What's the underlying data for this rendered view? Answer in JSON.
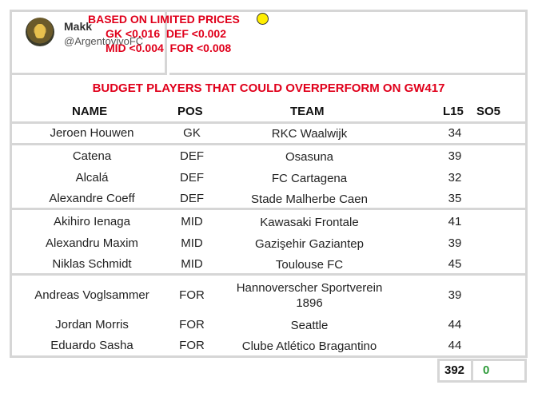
{
  "profile": {
    "name": "Makk",
    "handle": "@ArgentovivoFC"
  },
  "limits": {
    "title": "BASED ON LIMITED PRICES",
    "line1": "GK <0.016  DEF <0.002",
    "line2": "MID <0.004  FOR <0.008",
    "dot_color": "#ffee00"
  },
  "table": {
    "title": "BUDGET PLAYERS THAT COULD OVERPERFORM ON GW417",
    "headers": {
      "name": "NAME",
      "pos": "POS",
      "team": "TEAM",
      "l15": "L15",
      "so5": "SO5"
    },
    "rows": [
      {
        "name": "Jeroen Houwen",
        "pos": "GK",
        "team": "RKC Waalwijk",
        "l15": "34"
      },
      {
        "name": "Catena",
        "pos": "DEF",
        "team": "Osasuna",
        "l15": "39"
      },
      {
        "name": "Alcalá",
        "pos": "DEF",
        "team": "FC Cartagena",
        "l15": "32"
      },
      {
        "name": "Alexandre Coeff",
        "pos": "DEF",
        "team": "Stade Malherbe Caen",
        "l15": "35"
      },
      {
        "name": "Akihiro Ienaga",
        "pos": "MID",
        "team": "Kawasaki Frontale",
        "l15": "41"
      },
      {
        "name": "Alexandru Maxim",
        "pos": "MID",
        "team": "Gazişehir Gaziantep",
        "l15": "39"
      },
      {
        "name": "Niklas Schmidt",
        "pos": "MID",
        "team": "Toulouse FC",
        "l15": "45"
      },
      {
        "name": "Andreas Voglsammer",
        "pos": "FOR",
        "team": "Hannoverscher Sportverein 1896",
        "l15": "39"
      },
      {
        "name": "Jordan Morris",
        "pos": "FOR",
        "team": "Seattle",
        "l15": "44"
      },
      {
        "name": "Eduardo Sasha",
        "pos": "FOR",
        "team": "Clube Atlético Bragantino",
        "l15": "44"
      }
    ],
    "totals": {
      "l15": "392",
      "so5": "0"
    }
  },
  "colors": {
    "accent_red": "#e0001b",
    "total_green": "#2e9b3a",
    "border": "#d6d6d6"
  }
}
